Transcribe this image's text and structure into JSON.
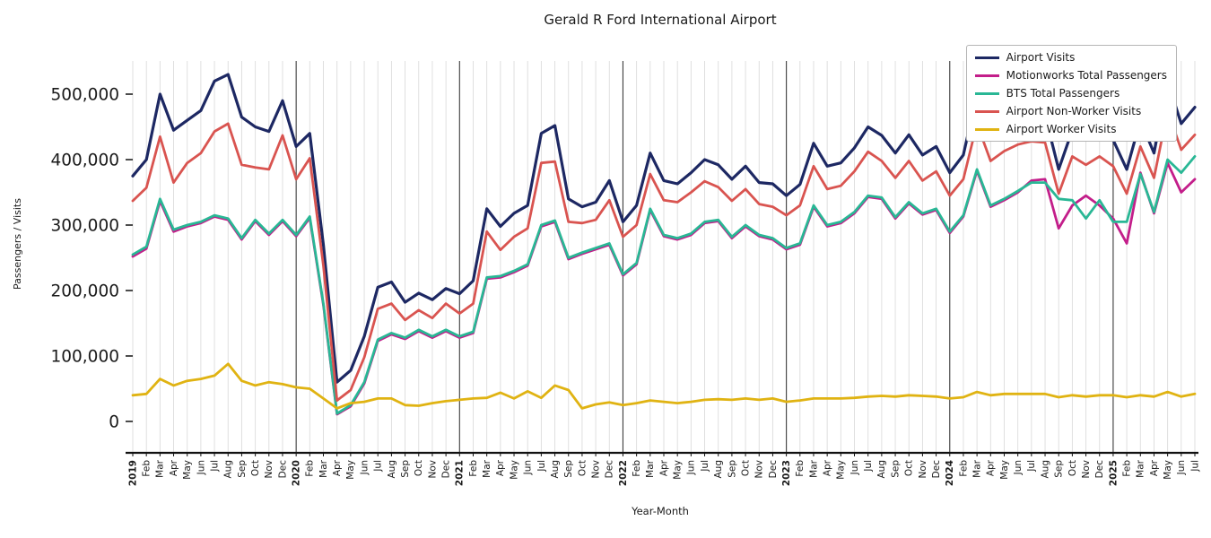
{
  "chart_data": {
    "type": "line",
    "title": "Gerald R Ford International Airport",
    "xlabel": "Year-Month",
    "ylabel": "Passengers / Visits",
    "legend_position": "upper right",
    "grid": "vertical monthly gridlines, dark separators at each January",
    "ylim": [
      0,
      555000
    ],
    "yticks": [
      0,
      100000,
      200000,
      300000,
      400000,
      500000
    ],
    "x_labels": [
      "2019",
      "Feb",
      "Mar",
      "Apr",
      "May",
      "Jun",
      "Jul",
      "Aug",
      "Sep",
      "Oct",
      "Nov",
      "Dec",
      "2020",
      "Feb",
      "Mar",
      "Apr",
      "May",
      "Jun",
      "Jul",
      "Aug",
      "Sep",
      "Oct",
      "Nov",
      "Dec",
      "2021",
      "Feb",
      "Mar",
      "Apr",
      "May",
      "Jun",
      "Jul",
      "Aug",
      "Sep",
      "Oct",
      "Nov",
      "Dec",
      "2022",
      "Feb",
      "Mar",
      "Apr",
      "May",
      "Jun",
      "Jul",
      "Aug",
      "Sep",
      "Oct",
      "Nov",
      "Dec",
      "2023",
      "Feb",
      "Mar",
      "Apr",
      "May",
      "Jun",
      "Jul",
      "Aug",
      "Sep",
      "Oct",
      "Nov",
      "Dec",
      "2024",
      "Feb",
      "Mar",
      "Apr",
      "May",
      "Jun",
      "Jul",
      "Aug",
      "Sep",
      "Oct",
      "Nov",
      "Dec",
      "2025",
      "Feb",
      "Mar",
      "Apr",
      "May",
      "Jun",
      "Jul"
    ],
    "series": [
      {
        "name": "Airport Visits",
        "color": "#1d2863",
        "values": [
          375000,
          400000,
          500000,
          445000,
          460000,
          475000,
          520000,
          530000,
          465000,
          450000,
          443000,
          490000,
          420000,
          440000,
          270000,
          60000,
          78000,
          130000,
          205000,
          213000,
          182000,
          196000,
          186000,
          203000,
          195000,
          215000,
          325000,
          298000,
          318000,
          330000,
          440000,
          452000,
          340000,
          328000,
          335000,
          368000,
          305000,
          330000,
          410000,
          368000,
          363000,
          380000,
          400000,
          392000,
          370000,
          390000,
          365000,
          363000,
          345000,
          362000,
          425000,
          390000,
          395000,
          418000,
          450000,
          437000,
          410000,
          438000,
          407000,
          420000,
          380000,
          407000,
          500000,
          438000,
          455000,
          465000,
          470000,
          468000,
          385000,
          445000,
          430000,
          445000,
          430000,
          385000,
          460000,
          410000,
          520000,
          455000,
          480000
        ]
      },
      {
        "name": "Motionworks Total Passengers",
        "color": "#c31e8a",
        "values": [
          252000,
          264000,
          337000,
          290000,
          298000,
          303000,
          313000,
          308000,
          278000,
          306000,
          285000,
          306000,
          283000,
          311000,
          178000,
          11000,
          23000,
          58000,
          123000,
          133000,
          126000,
          138000,
          128000,
          138000,
          128000,
          135000,
          218000,
          220000,
          228000,
          238000,
          298000,
          305000,
          248000,
          256000,
          263000,
          270000,
          223000,
          240000,
          323000,
          283000,
          278000,
          285000,
          303000,
          306000,
          280000,
          298000,
          283000,
          278000,
          263000,
          270000,
          328000,
          298000,
          303000,
          318000,
          343000,
          340000,
          310000,
          333000,
          316000,
          323000,
          288000,
          313000,
          383000,
          328000,
          338000,
          350000,
          368000,
          370000,
          295000,
          330000,
          345000,
          330000,
          310000,
          272000,
          380000,
          318000,
          395000,
          350000,
          370000
        ]
      },
      {
        "name": "BTS Total Passengers",
        "color": "#29b795",
        "values": [
          255000,
          267000,
          340000,
          293000,
          300000,
          305000,
          315000,
          310000,
          280000,
          308000,
          287000,
          308000,
          285000,
          313000,
          180000,
          12000,
          25000,
          60000,
          125000,
          135000,
          128000,
          140000,
          130000,
          140000,
          130000,
          137000,
          220000,
          222000,
          230000,
          240000,
          300000,
          307000,
          250000,
          258000,
          265000,
          272000,
          225000,
          242000,
          325000,
          285000,
          280000,
          287000,
          305000,
          308000,
          282000,
          300000,
          285000,
          280000,
          265000,
          272000,
          330000,
          300000,
          305000,
          320000,
          345000,
          342000,
          312000,
          335000,
          318000,
          325000,
          290000,
          315000,
          385000,
          330000,
          340000,
          352000,
          365000,
          365000,
          340000,
          338000,
          310000,
          338000,
          305000,
          305000,
          378000,
          320000,
          400000,
          380000,
          405000
        ]
      },
      {
        "name": "Airport Non-Worker Visits",
        "color": "#d95450",
        "values": [
          337000,
          357000,
          435000,
          365000,
          395000,
          410000,
          443000,
          455000,
          392000,
          388000,
          385000,
          437000,
          370000,
          402000,
          238000,
          32000,
          48000,
          98000,
          172000,
          180000,
          155000,
          170000,
          158000,
          180000,
          165000,
          180000,
          290000,
          262000,
          282000,
          295000,
          395000,
          397000,
          305000,
          303000,
          308000,
          338000,
          282000,
          300000,
          378000,
          338000,
          335000,
          350000,
          367000,
          358000,
          337000,
          355000,
          332000,
          328000,
          315000,
          330000,
          390000,
          355000,
          360000,
          382000,
          412000,
          398000,
          372000,
          398000,
          368000,
          382000,
          345000,
          370000,
          455000,
          398000,
          413000,
          423000,
          428000,
          426000,
          348000,
          405000,
          392000,
          405000,
          390000,
          348000,
          420000,
          372000,
          475000,
          415000,
          438000
        ]
      },
      {
        "name": "Airport Worker Visits",
        "color": "#e0b312",
        "values": [
          40000,
          42000,
          65000,
          55000,
          62000,
          65000,
          70000,
          88000,
          62000,
          55000,
          60000,
          57000,
          52000,
          50000,
          35000,
          20000,
          28000,
          30000,
          35000,
          35000,
          25000,
          24000,
          28000,
          31000,
          33000,
          35000,
          36000,
          44000,
          35000,
          46000,
          36000,
          55000,
          48000,
          20000,
          26000,
          29000,
          25000,
          28000,
          32000,
          30000,
          28000,
          30000,
          33000,
          34000,
          33000,
          35000,
          33000,
          35000,
          30000,
          32000,
          35000,
          35000,
          35000,
          36000,
          38000,
          39000,
          38000,
          40000,
          39000,
          38000,
          35000,
          37000,
          45000,
          40000,
          42000,
          42000,
          42000,
          42000,
          37000,
          40000,
          38000,
          40000,
          40000,
          37000,
          40000,
          38000,
          45000,
          38000,
          42000
        ]
      }
    ]
  }
}
